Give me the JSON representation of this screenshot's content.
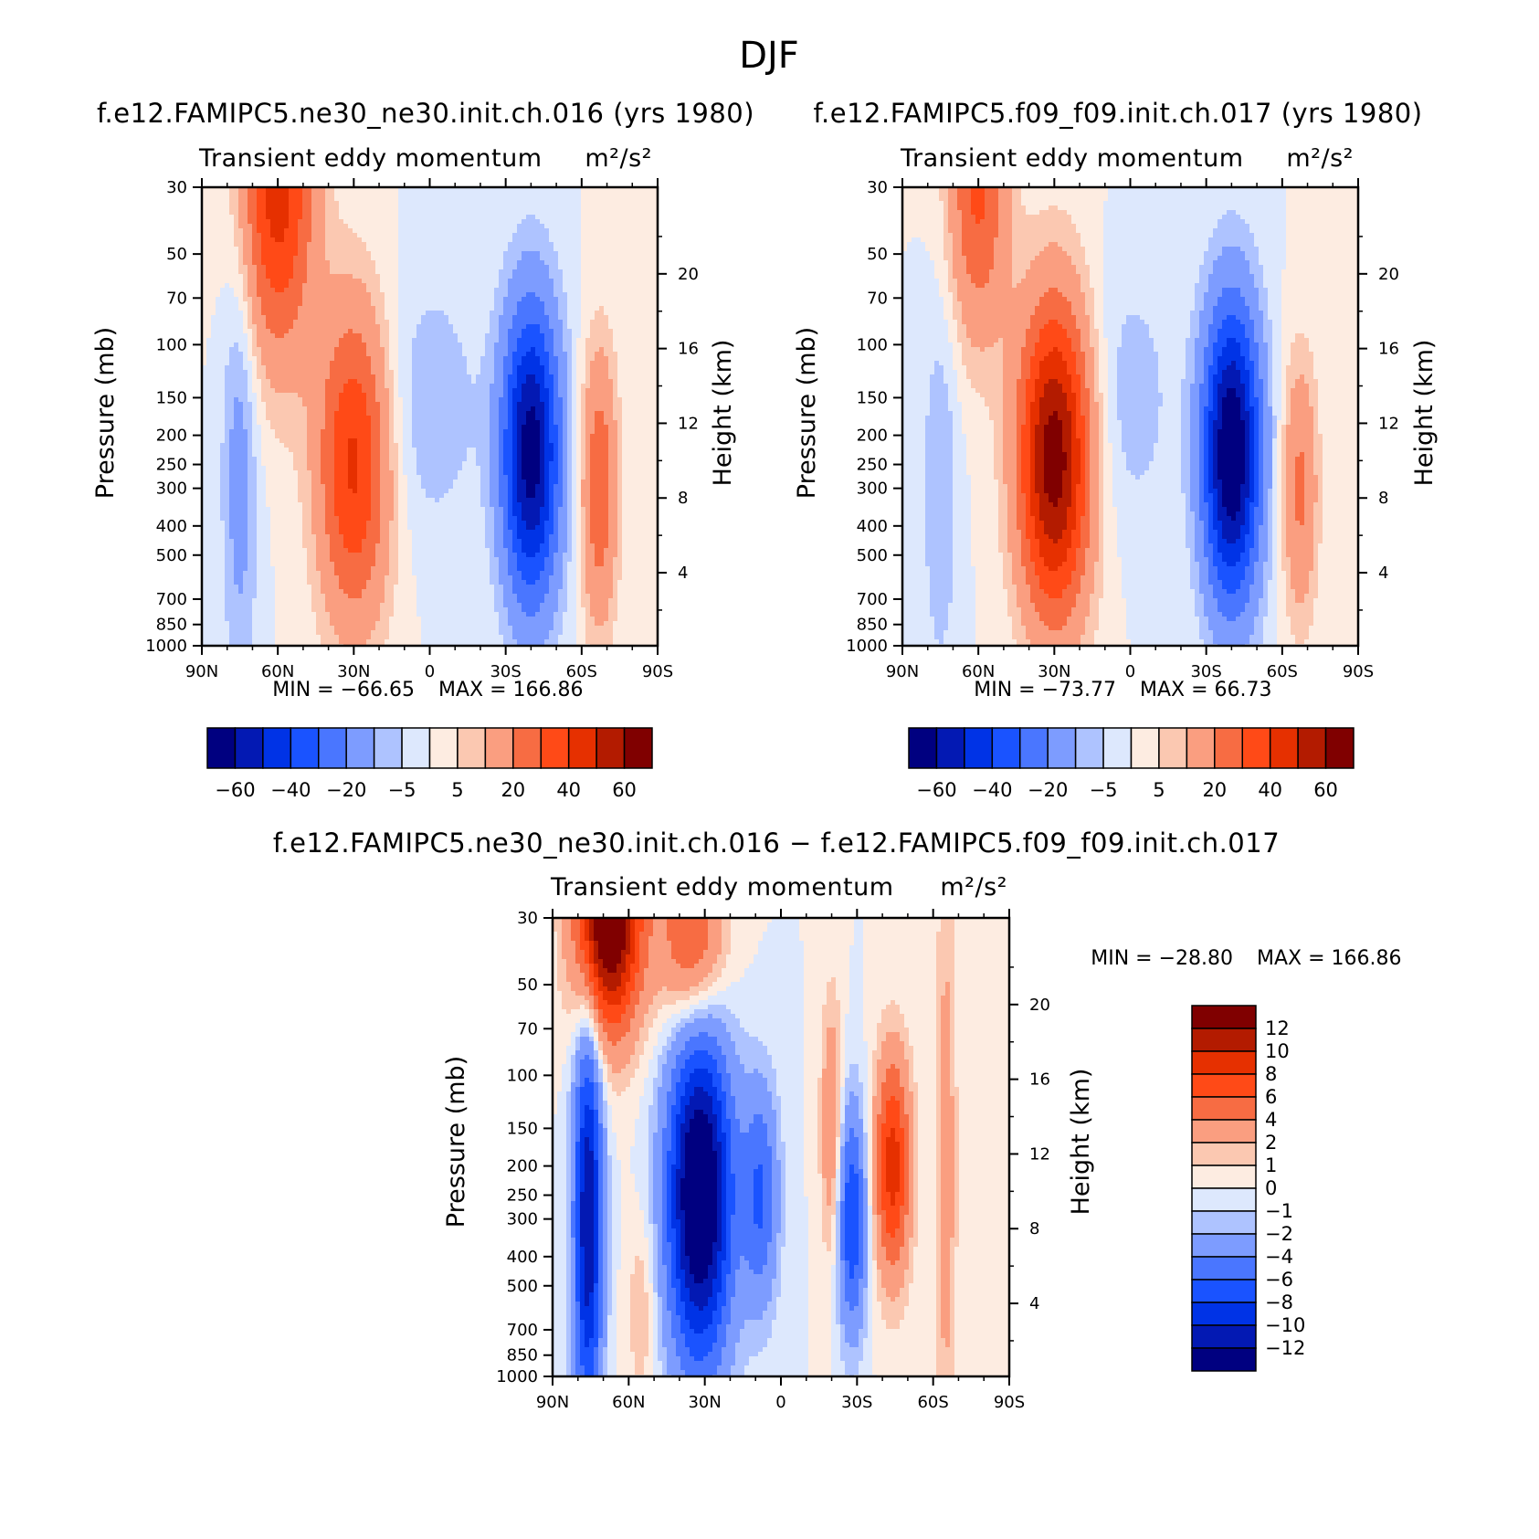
{
  "figure": {
    "title": "DJF",
    "colors": {
      "diverging": [
        "#000080",
        "#0319b3",
        "#0033e6",
        "#1a53ff",
        "#4a76ff",
        "#7d9cff",
        "#aec3ff",
        "#dde8fd",
        "#fdece1",
        "#fbc8b1",
        "#fa9e80",
        "#f76c43",
        "#ff4a17",
        "#e63000",
        "#b31b00",
        "#800000"
      ]
    }
  },
  "chart_data": [
    {
      "type": "heatmap",
      "title": "f.e12.FAMIPC5.ne30_ne30.init.ch.016 (yrs 1980)",
      "variable": "Transient eddy momentum",
      "units": "m²/s²",
      "xlabel": "",
      "ylabel": "Pressure (mb)",
      "y2label": "Height (km)",
      "x_ticks": [
        "90N",
        "60N",
        "30N",
        "0",
        "30S",
        "60S",
        "90S"
      ],
      "y_ticks": [
        30,
        50,
        70,
        100,
        150,
        200,
        250,
        300,
        400,
        500,
        700,
        850,
        1000
      ],
      "y2_ticks": [
        20,
        16,
        12,
        8,
        4
      ],
      "ylim": [
        1000,
        30
      ],
      "min_label": "MIN = −66.65",
      "max_label": "MAX = 166.86",
      "min": -66.65,
      "max": 166.86,
      "levels": [
        -70,
        -60,
        -50,
        -40,
        -30,
        -20,
        -10,
        -5,
        0,
        5,
        10,
        20,
        30,
        40,
        50,
        60,
        70
      ],
      "colorbar_labels": [
        "−60",
        "−40",
        "−20",
        "−5",
        "5",
        "20",
        "40",
        "60"
      ],
      "features": [
        {
          "lat": 60,
          "p": 30,
          "value": 45,
          "slat": 10,
          "sp": 0.9
        },
        {
          "lat": 30,
          "p": 250,
          "value": 42,
          "slat": 10,
          "sp": 0.85
        },
        {
          "lat": -40,
          "p": 230,
          "value": -66,
          "slat": 8,
          "sp": 0.8
        },
        {
          "lat": -67,
          "p": 300,
          "value": 28,
          "slat": 5,
          "sp": 0.75
        },
        {
          "lat": 75,
          "p": 250,
          "value": -14,
          "slat": 5,
          "sp": 1.2
        },
        {
          "lat": 0,
          "p": 160,
          "value": -9,
          "slat": 14,
          "sp": 0.7
        }
      ]
    },
    {
      "type": "heatmap",
      "title": "f.e12.FAMIPC5.f09_f09.init.ch.017 (yrs 1980)",
      "variable": "Transient eddy momentum",
      "units": "m²/s²",
      "xlabel": "",
      "ylabel": "Pressure (mb)",
      "y2label": "Height (km)",
      "x_ticks": [
        "90N",
        "60N",
        "30N",
        "0",
        "30S",
        "60S",
        "90S"
      ],
      "y_ticks": [
        30,
        50,
        70,
        100,
        150,
        200,
        250,
        300,
        400,
        500,
        700,
        850,
        1000
      ],
      "y2_ticks": [
        20,
        16,
        12,
        8,
        4
      ],
      "ylim": [
        1000,
        30
      ],
      "min_label": "MIN = −73.77",
      "max_label": "MAX = 66.73",
      "min": -73.77,
      "max": 66.73,
      "levels": [
        -70,
        -60,
        -50,
        -40,
        -30,
        -20,
        -10,
        -5,
        0,
        5,
        10,
        20,
        30,
        40,
        50,
        60,
        70
      ],
      "colorbar_labels": [
        "−60",
        "−40",
        "−20",
        "−5",
        "5",
        "20",
        "40",
        "60"
      ],
      "features": [
        {
          "lat": 60,
          "p": 30,
          "value": 32,
          "slat": 8,
          "sp": 0.8
        },
        {
          "lat": 30,
          "p": 240,
          "value": 66,
          "slat": 10,
          "sp": 0.85
        },
        {
          "lat": -40,
          "p": 230,
          "value": -73,
          "slat": 8,
          "sp": 0.8
        },
        {
          "lat": -67,
          "p": 300,
          "value": 22,
          "slat": 5,
          "sp": 0.7
        },
        {
          "lat": 75,
          "p": 300,
          "value": -10,
          "slat": 5,
          "sp": 1.0
        },
        {
          "lat": 0,
          "p": 150,
          "value": -8,
          "slat": 12,
          "sp": 0.7
        }
      ]
    },
    {
      "type": "heatmap",
      "title": "f.e12.FAMIPC5.ne30_ne30.init.ch.016 − f.e12.FAMIPC5.f09_f09.init.ch.017",
      "variable": "Transient eddy momentum",
      "units": "m²/s²",
      "xlabel": "",
      "ylabel": "Pressure (mb)",
      "y2label": "Height (km)",
      "x_ticks": [
        "90N",
        "60N",
        "30N",
        "0",
        "30S",
        "60S",
        "90S"
      ],
      "y_ticks": [
        30,
        50,
        70,
        100,
        150,
        200,
        250,
        300,
        400,
        500,
        700,
        850,
        1000
      ],
      "y2_ticks": [
        20,
        16,
        12,
        8,
        4
      ],
      "ylim": [
        1000,
        30
      ],
      "min_label": "MIN = −28.80",
      "max_label": "MAX = 166.86",
      "min": -28.8,
      "max": 166.86,
      "levels": [
        -14,
        -12,
        -10,
        -8,
        -6,
        -4,
        -2,
        -1,
        0,
        1,
        2,
        4,
        6,
        8,
        10,
        12,
        14
      ],
      "colorbar_labels": [
        "12",
        "10",
        "8",
        "6",
        "4",
        "2",
        "1",
        "0",
        "−1",
        "−2",
        "−4",
        "−6",
        "−8",
        "−10",
        "−12"
      ],
      "features": [
        {
          "lat": 68,
          "p": 30,
          "value": 16,
          "slat": 9,
          "sp": 0.6
        },
        {
          "lat": 35,
          "p": 35,
          "value": 7,
          "slat": 9,
          "sp": 0.5
        },
        {
          "lat": 32,
          "p": 250,
          "value": -16,
          "slat": 9,
          "sp": 0.9
        },
        {
          "lat": 76,
          "p": 300,
          "value": -12,
          "slat": 4,
          "sp": 1.1
        },
        {
          "lat": -44,
          "p": 200,
          "value": 9,
          "slat": 5,
          "sp": 0.6
        },
        {
          "lat": -28,
          "p": 300,
          "value": -8,
          "slat": 4,
          "sp": 0.6
        },
        {
          "lat": -65,
          "p": 200,
          "value": 3,
          "slat": 3,
          "sp": 1.6
        },
        {
          "lat": -20,
          "p": 150,
          "value": 4,
          "slat": 3,
          "sp": 0.7
        },
        {
          "lat": 8,
          "p": 250,
          "value": -6,
          "slat": 5,
          "sp": 0.6
        },
        {
          "lat": 55,
          "p": 600,
          "value": 2,
          "slat": 4,
          "sp": 0.5
        }
      ]
    }
  ]
}
